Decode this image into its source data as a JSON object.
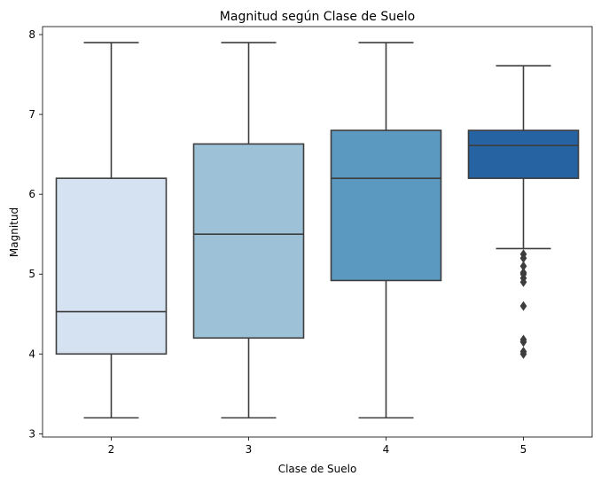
{
  "chart_data": {
    "type": "box",
    "title": "Magnitud según Clase de Suelo",
    "xlabel": "Clase de Suelo",
    "ylabel": "Magnitud",
    "categories": [
      "2",
      "3",
      "4",
      "5"
    ],
    "ylim": [
      2.96,
      8.1
    ],
    "yticks": [
      "3",
      "4",
      "5",
      "6",
      "7",
      "8"
    ],
    "grid": false,
    "legend": "none",
    "boxes": [
      {
        "category": "2",
        "whisker_low": 3.2,
        "q1": 4.0,
        "median": 4.53,
        "q3": 6.2,
        "whisker_high": 7.9,
        "outliers": [],
        "color": "#d4e2f1"
      },
      {
        "category": "3",
        "whisker_low": 3.2,
        "q1": 4.2,
        "median": 5.5,
        "q3": 6.63,
        "whisker_high": 7.9,
        "outliers": [],
        "color": "#9dc2d7"
      },
      {
        "category": "4",
        "whisker_low": 3.2,
        "q1": 4.92,
        "median": 6.2,
        "q3": 6.8,
        "whisker_high": 7.9,
        "outliers": [],
        "color": "#5b99c0"
      },
      {
        "category": "5",
        "whisker_low": 5.32,
        "q1": 6.2,
        "median": 6.61,
        "q3": 6.8,
        "whisker_high": 7.61,
        "outliers": [
          5.25,
          5.2,
          5.1,
          5.02,
          5.0,
          4.95,
          4.9,
          4.6,
          4.18,
          4.15,
          4.03,
          4.0
        ],
        "color": "#2663a2"
      }
    ],
    "line_color": "#3d3d3d"
  }
}
